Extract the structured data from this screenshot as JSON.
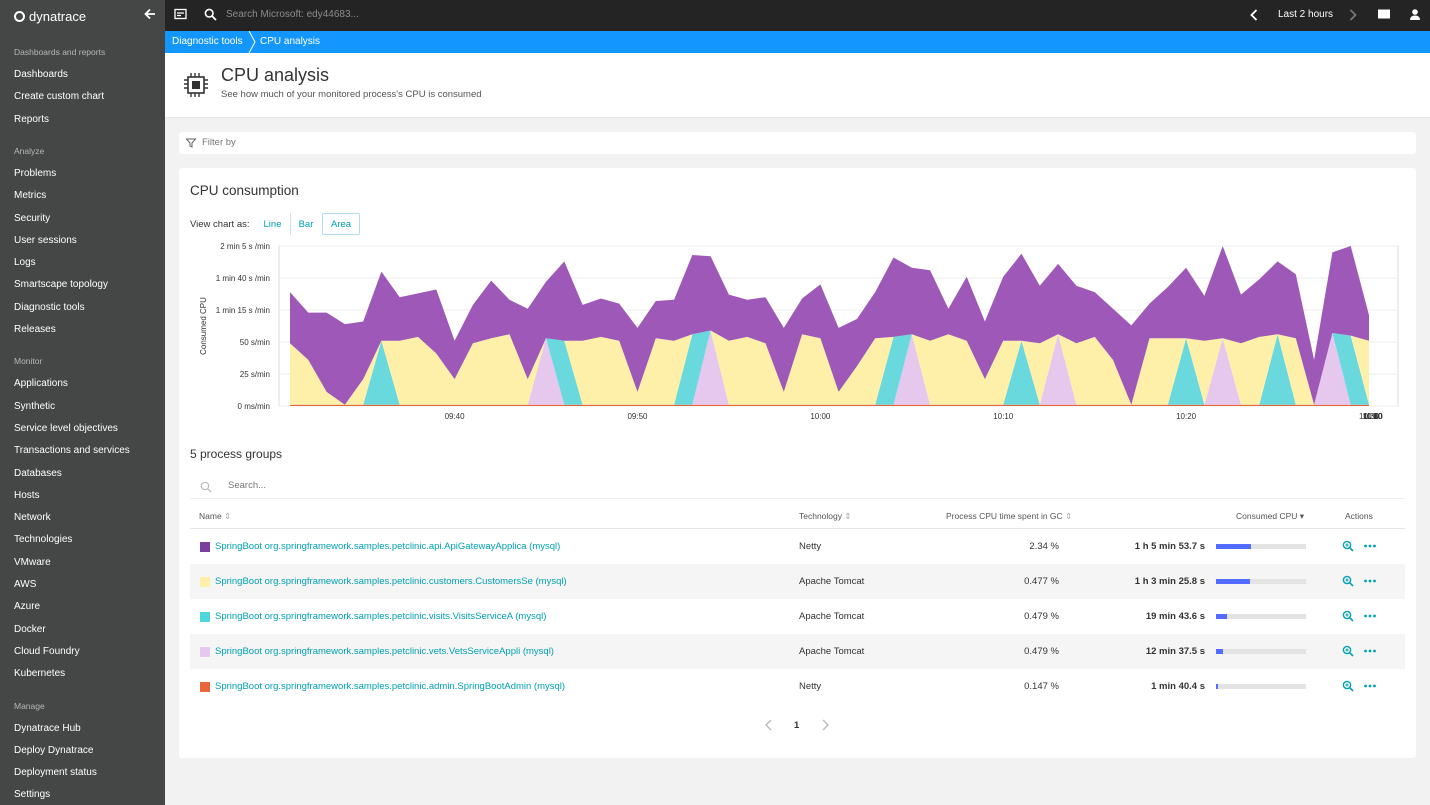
{
  "sidebar": {
    "logo_text": "dynatrace",
    "sections": [
      {
        "label": "Dashboards and reports",
        "items": [
          "Dashboards",
          "Create custom chart",
          "Reports"
        ]
      },
      {
        "label": "Analyze",
        "items": [
          "Problems",
          "Metrics",
          "Security",
          "User sessions",
          "Logs",
          "Smartscape topology",
          "Diagnostic tools",
          "Releases"
        ]
      },
      {
        "label": "Monitor",
        "items": [
          "Applications",
          "Synthetic",
          "Service level objectives",
          "Transactions and services",
          "Databases",
          "Hosts",
          "Network",
          "Technologies",
          "VMware",
          "AWS",
          "Azure",
          "Docker",
          "Cloud Foundry",
          "Kubernetes"
        ]
      },
      {
        "label": "Manage",
        "items": [
          "Dynatrace Hub",
          "Deploy Dynatrace",
          "Deployment status",
          "Settings"
        ]
      }
    ]
  },
  "topbar": {
    "search_placeholder": "Search Microsoft: edy44683...",
    "timeframe": "Last 2 hours"
  },
  "breadcrumb": [
    "Diagnostic tools",
    "CPU analysis"
  ],
  "header": {
    "title": "CPU analysis",
    "subtitle": "See how much of your monitored process's CPU is consumed"
  },
  "filter": {
    "placeholder": "Filter by"
  },
  "chart_section": {
    "title": "CPU consumption",
    "view_as_label": "View chart as:",
    "view_options": [
      "Line",
      "Bar",
      "Area"
    ],
    "active_view": "Area"
  },
  "chart_data": {
    "type": "area",
    "stacked": true,
    "ylabel": "Consumed CPU",
    "y_ticks": [
      "0 ms/min",
      "25 s/min",
      "50 s/min",
      "1 min 15 s /min",
      "1 min 40 s /min",
      "2 min 5 s /min"
    ],
    "y_tick_values_s_per_min": [
      0,
      25,
      50,
      75,
      100,
      125
    ],
    "ylim_s_per_min": [
      0,
      125
    ],
    "x_ticks": [
      "09:40",
      "09:50",
      "10:00",
      "10:10",
      "10:20",
      "10:30",
      "10:40",
      "10:50",
      "11:00",
      "11:10",
      "11:20",
      "11:30"
    ],
    "x_start": "09:31",
    "x_step_minutes": 1,
    "grid": true,
    "series": [
      {
        "name": "SpringBoot org.springframework.samples.petclinic.admin.SpringBootAdmin (mysql)",
        "color": "#e8663c",
        "values": [
          1,
          1,
          1,
          1,
          1,
          1,
          1,
          1,
          1,
          1,
          1,
          1,
          1,
          1,
          1,
          1,
          1,
          1,
          1,
          1,
          1,
          1,
          1,
          1,
          1,
          1,
          1,
          1,
          1,
          1,
          1,
          1,
          1,
          1,
          1,
          1,
          1,
          1,
          1,
          1,
          1,
          1,
          1,
          1,
          1,
          1,
          1,
          1,
          1,
          1,
          1,
          1,
          1,
          1,
          1,
          1,
          1,
          1,
          1,
          1
        ]
      },
      {
        "name": "SpringBoot org.springframework.samples.petclinic.vets.VetsServiceAppli (mysql)",
        "color": "#e6c8ef",
        "values": [
          0,
          0,
          0,
          0,
          0,
          0,
          0,
          0,
          0,
          0,
          0,
          0,
          0,
          0,
          52,
          0,
          0,
          0,
          0,
          0,
          0,
          0,
          0,
          58,
          0,
          0,
          0,
          0,
          0,
          0,
          0,
          0,
          0,
          0,
          55,
          0,
          0,
          0,
          0,
          0,
          0,
          0,
          55,
          0,
          0,
          0,
          0,
          0,
          0,
          0,
          0,
          52,
          0,
          0,
          0,
          0,
          0,
          56,
          0,
          0
        ]
      },
      {
        "name": "SpringBoot org.springframework.samples.petclinic.visits.VisitsServiceA (mysql)",
        "color": "#6ad9de",
        "values": [
          0,
          0,
          0,
          0,
          0,
          50,
          0,
          0,
          0,
          0,
          0,
          0,
          0,
          0,
          0,
          50,
          0,
          0,
          0,
          0,
          0,
          0,
          55,
          0,
          0,
          0,
          0,
          0,
          0,
          0,
          0,
          0,
          0,
          53,
          0,
          0,
          0,
          0,
          0,
          0,
          50,
          0,
          0,
          0,
          0,
          0,
          0,
          0,
          0,
          52,
          0,
          0,
          0,
          0,
          55,
          0,
          0,
          0,
          54,
          0
        ]
      },
      {
        "name": "SpringBoot org.springframework.samples.petclinic.customers.CustomersSe (mysql)",
        "color": "#fff0a9",
        "values": [
          48,
          35,
          10,
          0,
          20,
          0,
          50,
          53,
          40,
          20,
          48,
          52,
          55,
          20,
          0,
          0,
          50,
          53,
          50,
          10,
          52,
          50,
          0,
          0,
          50,
          53,
          48,
          10,
          55,
          52,
          10,
          30,
          52,
          0,
          0,
          50,
          55,
          50,
          20,
          50,
          0,
          48,
          0,
          48,
          53,
          35,
          0,
          52,
          52,
          0,
          50,
          0,
          48,
          53,
          0,
          52,
          0,
          0,
          0,
          50
        ]
      },
      {
        "name": "SpringBoot org.springframework.samples.petclinic.api.ApiGatewayApplica (mysql)",
        "color": "#9e59b8",
        "values": [
          40,
          37,
          62,
          63,
          45,
          54,
          34,
          34,
          50,
          30,
          30,
          45,
          27,
          55,
          44,
          62,
          28,
          30,
          29,
          50,
          29,
          32,
          62,
          58,
          36,
          29,
          36,
          50,
          28,
          42,
          50,
          37,
          36,
          62,
          52,
          55,
          20,
          50,
          45,
          50,
          68,
          45,
          55,
          45,
          35,
          40,
          62,
          27,
          40,
          55,
          35,
          72,
          38,
          45,
          57,
          50,
          35,
          63,
          70,
          20
        ]
      }
    ]
  },
  "process_groups": {
    "title": "5 process groups",
    "search_placeholder": "Search...",
    "columns": {
      "name": "Name",
      "technology": "Technology",
      "gc": "Process CPU time spent in GC",
      "consumed": "Consumed CPU",
      "actions": "Actions"
    },
    "rows": [
      {
        "name": "SpringBoot org.springframework.samples.petclinic.api.ApiGatewayApplica (mysql)",
        "color": "#7b3f9e",
        "technology": "Netty",
        "gc": "2.34 %",
        "consumed": "1 h 5 min 53.7 s",
        "share": 0.39
      },
      {
        "name": "SpringBoot org.springframework.samples.petclinic.customers.CustomersSe (mysql)",
        "color": "#fff0a9",
        "technology": "Apache Tomcat",
        "gc": "0.477 %",
        "consumed": "1 h 3 min 25.8 s",
        "share": 0.38
      },
      {
        "name": "SpringBoot org.springframework.samples.petclinic.visits.VisitsServiceA (mysql)",
        "color": "#4fd5dc",
        "technology": "Apache Tomcat",
        "gc": "0.479 %",
        "consumed": "19 min 43.6 s",
        "share": 0.12
      },
      {
        "name": "SpringBoot org.springframework.samples.petclinic.vets.VetsServiceAppli (mysql)",
        "color": "#e6c8ef",
        "technology": "Apache Tomcat",
        "gc": "0.479 %",
        "consumed": "12 min 37.5 s",
        "share": 0.075
      },
      {
        "name": "SpringBoot org.springframework.samples.petclinic.admin.SpringBootAdmin (mysql)",
        "color": "#e8663c",
        "technology": "Netty",
        "gc": "0.147 %",
        "consumed": "1 min 40.4 s",
        "share": 0.01
      }
    ],
    "pager": {
      "page": "1"
    }
  }
}
